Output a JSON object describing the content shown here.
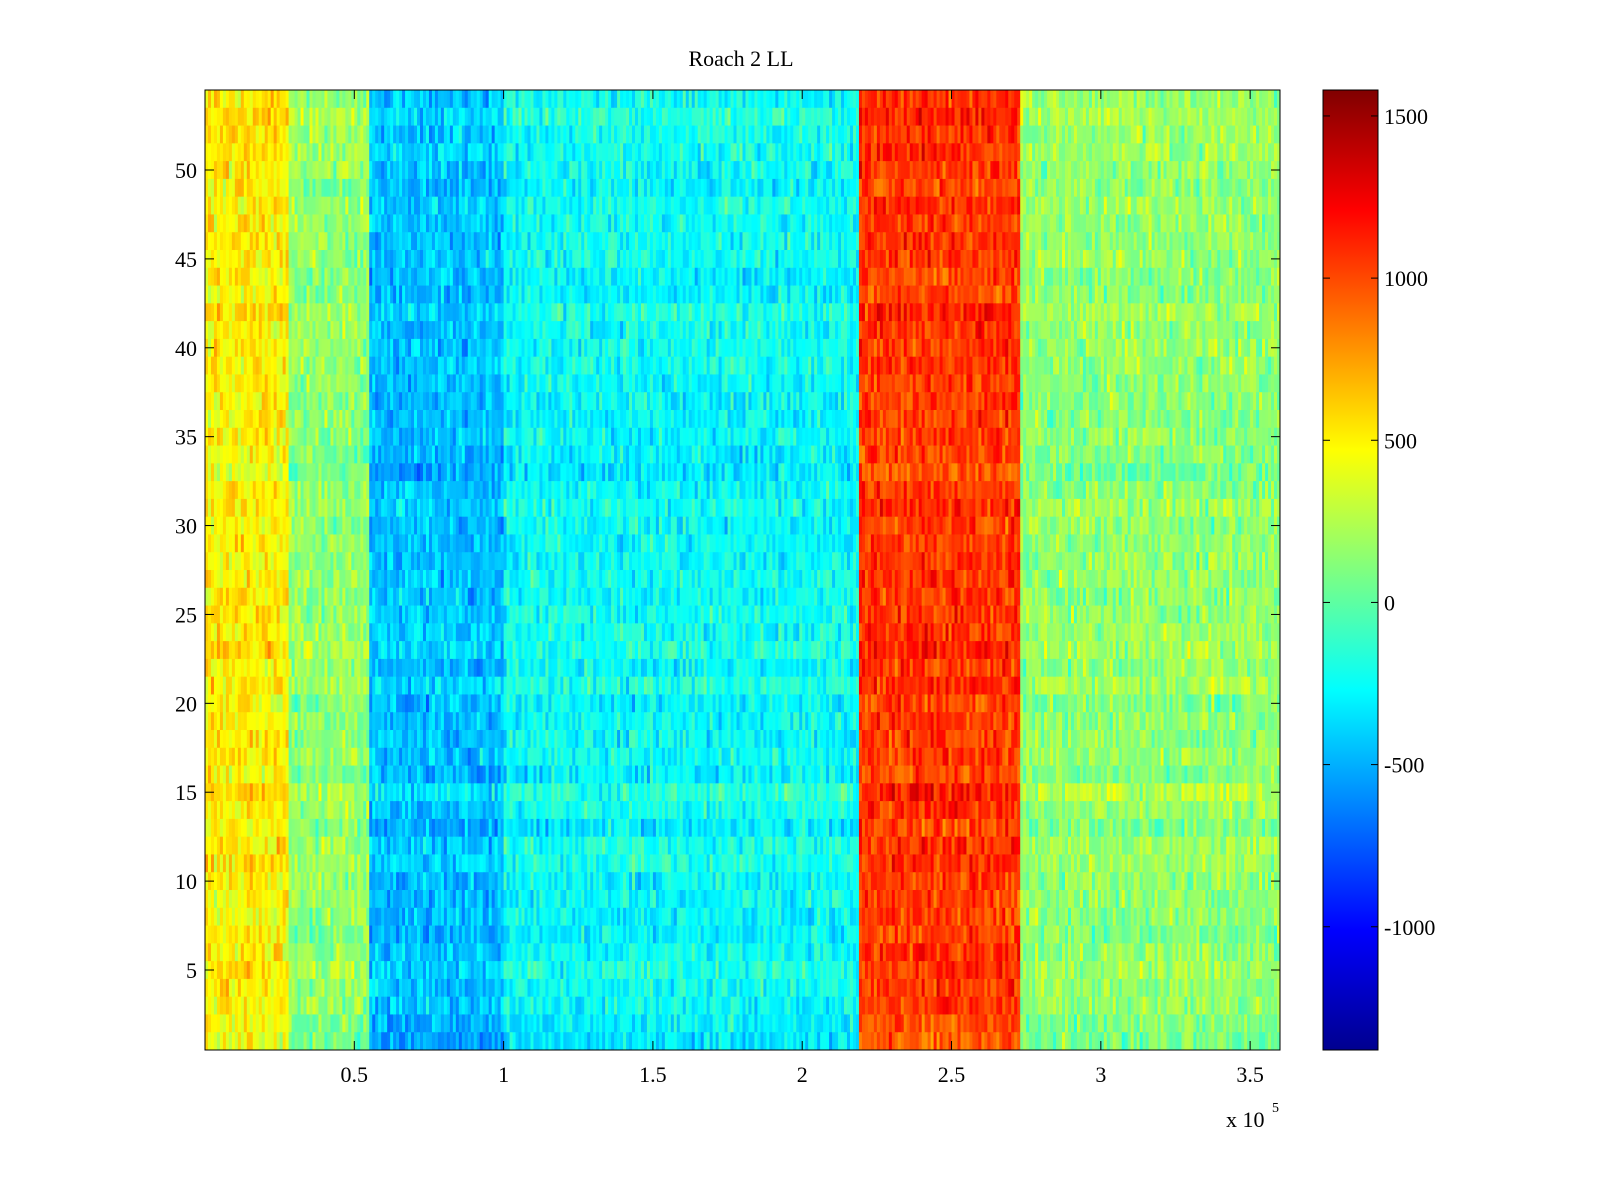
{
  "chart_data": {
    "type": "heatmap",
    "title": "Roach 2 LL",
    "xlabel": "",
    "ylabel": "",
    "x_exponent_label": {
      "base": "x 10",
      "exponent": "5"
    },
    "xlim": [
      0,
      3.6
    ],
    "ylim": [
      0.5,
      54.5
    ],
    "x_ticks": [
      0.5,
      1,
      1.5,
      2,
      2.5,
      3,
      3.5
    ],
    "x_tick_labels": [
      "0.5",
      "1",
      "1.5",
      "2",
      "2.5",
      "3",
      "3.5"
    ],
    "y_ticks": [
      5,
      10,
      15,
      20,
      25,
      30,
      35,
      40,
      45,
      50
    ],
    "y_tick_labels": [
      "5",
      "10",
      "15",
      "20",
      "25",
      "30",
      "35",
      "40",
      "45",
      "50"
    ],
    "colorbar": {
      "colormap": "jet",
      "clim": [
        -1380,
        1580
      ],
      "ticks": [
        -1000,
        -500,
        0,
        500,
        1000,
        1500
      ],
      "tick_labels": [
        "-1000",
        "-500",
        "0",
        "500",
        "1000",
        "1500"
      ]
    },
    "rows": 54,
    "column_bands": [
      {
        "x_start": 0.0,
        "x_end": 0.28,
        "mean_value": 500
      },
      {
        "x_start": 0.28,
        "x_end": 0.55,
        "mean_value": 150
      },
      {
        "x_start": 0.55,
        "x_end": 1.0,
        "mean_value": -450
      },
      {
        "x_start": 1.0,
        "x_end": 2.19,
        "mean_value": -250
      },
      {
        "x_start": 2.19,
        "x_end": 2.73,
        "mean_value": 1050
      },
      {
        "x_start": 2.73,
        "x_end": 3.6,
        "mean_value": 150
      }
    ],
    "grid": false
  }
}
